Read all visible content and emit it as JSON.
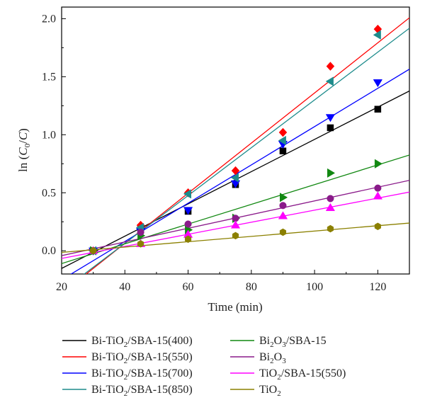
{
  "chart_data": {
    "type": "scatter",
    "xlabel": "Time (min)",
    "ylabel": "ln (C0/C)",
    "ylabel_parts": {
      "pre": "ln (",
      "c": "C",
      "sub": "0",
      "post": "/",
      "c2": "C",
      "close": ")"
    },
    "xlim": [
      20,
      130
    ],
    "ylim": [
      -0.2,
      2.1
    ],
    "xticks": [
      20,
      40,
      60,
      80,
      100,
      120
    ],
    "yticks": [
      0.0,
      0.5,
      1.0,
      1.5,
      2.0
    ],
    "xtick_labels": [
      "20",
      "40",
      "60",
      "80",
      "100",
      "120"
    ],
    "ytick_labels": [
      "0.0",
      "0.5",
      "1.0",
      "1.5",
      "2.0"
    ],
    "grid": false,
    "legend_position": "below",
    "series": [
      {
        "name": "Bi-TiO2/SBA-15(400)",
        "label_parts": [
          "Bi-TiO",
          "2",
          "/SBA-15(400)"
        ],
        "color": "#000000",
        "marker": "square",
        "x": [
          30,
          45,
          60,
          75,
          90,
          105,
          120
        ],
        "y": [
          0.0,
          0.2,
          0.34,
          0.57,
          0.86,
          1.06,
          1.22
        ],
        "fit": {
          "slope": 0.0139,
          "intercept": -0.43
        }
      },
      {
        "name": "Bi-TiO2/SBA-15(550)",
        "label_parts": [
          "Bi-TiO",
          "2",
          "/SBA-15(550)"
        ],
        "color": "#ff0000",
        "marker": "diamond",
        "x": [
          30,
          45,
          60,
          75,
          90,
          105,
          120
        ],
        "y": [
          0.0,
          0.22,
          0.5,
          0.69,
          1.02,
          1.59,
          1.91
        ],
        "fit": {
          "slope": 0.0216,
          "intercept": -0.8
        }
      },
      {
        "name": "Bi-TiO2/SBA-15(700)",
        "label_parts": [
          "Bi-TiO",
          "2",
          "/SBA-15(700)"
        ],
        "color": "#0000ff",
        "marker": "triangle-down",
        "x": [
          30,
          45,
          60,
          75,
          90,
          105,
          120
        ],
        "y": [
          0.0,
          0.17,
          0.35,
          0.58,
          0.92,
          1.15,
          1.45
        ],
        "fit": {
          "slope": 0.0165,
          "intercept": -0.58
        }
      },
      {
        "name": "Bi-TiO2/SBA-15(850)",
        "label_parts": [
          "Bi-TiO",
          "2",
          "/SBA-15(850)"
        ],
        "color": "#1e8c8c",
        "marker": "triangle-left",
        "x": [
          30,
          45,
          60,
          75,
          90,
          105,
          120
        ],
        "y": [
          0.0,
          0.2,
          0.49,
          0.63,
          0.95,
          1.46,
          1.86
        ],
        "fit": {
          "slope": 0.0206,
          "intercept": -0.76
        }
      },
      {
        "name": "Bi2O3/SBA-15",
        "label_parts": [
          "Bi",
          "2",
          "O",
          "3",
          "/SBA-15"
        ],
        "color": "#118811",
        "marker": "triangle-right",
        "x": [
          30,
          45,
          60,
          75,
          90,
          105,
          120
        ],
        "y": [
          0.0,
          0.13,
          0.18,
          0.28,
          0.46,
          0.67,
          0.75
        ],
        "fit": {
          "slope": 0.0085,
          "intercept": -0.28
        }
      },
      {
        "name": "Bi2O3",
        "label_parts": [
          "Bi",
          "2",
          "O",
          "3"
        ],
        "color": "#8a1a8a",
        "marker": "circle",
        "x": [
          30,
          45,
          60,
          75,
          90,
          105,
          120
        ],
        "y": [
          0.0,
          0.16,
          0.23,
          0.28,
          0.39,
          0.45,
          0.54
        ],
        "fit": {
          "slope": 0.0059,
          "intercept": -0.16
        }
      },
      {
        "name": "TiO2/SBA-15(550)",
        "label_parts": [
          "TiO",
          "2",
          "/SBA-15(550)"
        ],
        "color": "#ff00ff",
        "marker": "triangle-up",
        "x": [
          30,
          45,
          60,
          75,
          90,
          105,
          120
        ],
        "y": [
          0.0,
          0.06,
          0.14,
          0.22,
          0.3,
          0.37,
          0.47
        ],
        "fit": {
          "slope": 0.0052,
          "intercept": -0.17
        }
      },
      {
        "name": "TiO2",
        "label_parts": [
          "TiO",
          "2"
        ],
        "color": "#8b8000",
        "marker": "hexagon",
        "x": [
          30,
          45,
          60,
          75,
          90,
          105,
          120
        ],
        "y": [
          0.0,
          0.06,
          0.1,
          0.13,
          0.16,
          0.19,
          0.21
        ],
        "fit": {
          "slope": 0.0023,
          "intercept": -0.06
        }
      }
    ]
  }
}
